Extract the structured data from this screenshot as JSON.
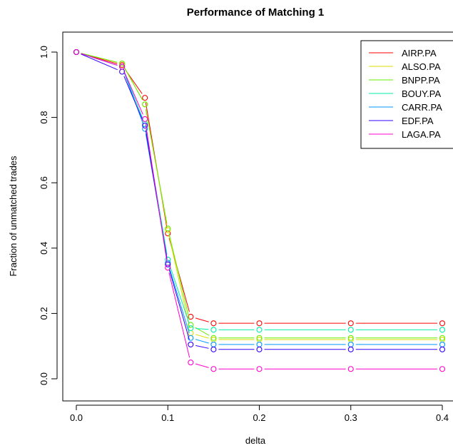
{
  "chart_data": {
    "type": "line",
    "title": "Performance of Matching 1",
    "xlabel": "delta",
    "ylabel": "Fraction of unmatched trades",
    "xlim": [
      0,
      0.4
    ],
    "ylim": [
      0,
      1.0
    ],
    "xticks": [
      0.0,
      0.1,
      0.2,
      0.3,
      0.4
    ],
    "xtick_labels": [
      "0.0",
      "0.1",
      "0.2",
      "0.3",
      "0.4"
    ],
    "yticks": [
      0.0,
      0.2,
      0.4,
      0.6,
      0.8,
      1.0
    ],
    "ytick_labels": [
      "0.0",
      "0.2",
      "0.4",
      "0.6",
      "0.8",
      "1.0"
    ],
    "legend_position": "top-right",
    "grid": false,
    "x": [
      0.0,
      0.05,
      0.075,
      0.1,
      0.125,
      0.15,
      0.2,
      0.3,
      0.4
    ],
    "series": [
      {
        "name": "AIRP.PA",
        "color": "#FF0000",
        "values": [
          1.0,
          0.96,
          0.86,
          0.445,
          0.19,
          0.17,
          0.17,
          0.17,
          0.17
        ]
      },
      {
        "name": "ALSO.PA",
        "color": "#DDDD00",
        "values": [
          1.0,
          0.965,
          0.84,
          0.455,
          0.14,
          0.12,
          0.12,
          0.12,
          0.12
        ]
      },
      {
        "name": "BNPP.PA",
        "color": "#66EE00",
        "values": [
          1.0,
          0.965,
          0.84,
          0.46,
          0.165,
          0.125,
          0.125,
          0.125,
          0.125
        ]
      },
      {
        "name": "BOUY.PA",
        "color": "#00EEAA",
        "values": [
          1.0,
          0.955,
          0.78,
          0.365,
          0.155,
          0.15,
          0.15,
          0.15,
          0.15
        ]
      },
      {
        "name": "CARR.PA",
        "color": "#0099FF",
        "values": [
          1.0,
          0.955,
          0.765,
          0.355,
          0.125,
          0.105,
          0.105,
          0.105,
          0.105
        ]
      },
      {
        "name": "EDF.PA",
        "color": "#3300FF",
        "values": [
          1.0,
          0.94,
          0.775,
          0.35,
          0.105,
          0.09,
          0.09,
          0.09,
          0.09
        ]
      },
      {
        "name": "LAGA.PA",
        "color": "#FF00CC",
        "values": [
          1.0,
          0.955,
          0.795,
          0.34,
          0.05,
          0.03,
          0.03,
          0.03,
          0.03
        ]
      }
    ]
  }
}
